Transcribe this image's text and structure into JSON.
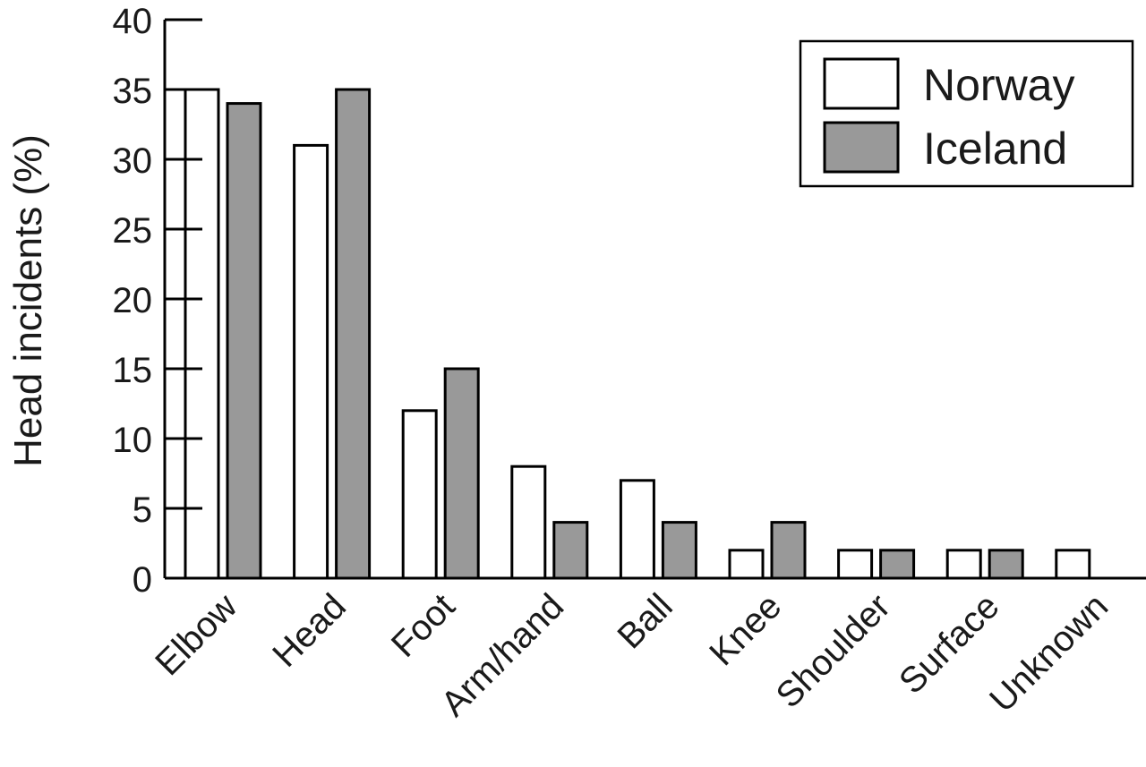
{
  "chart_data": {
    "type": "bar",
    "title": "",
    "xlabel": "",
    "ylabel": "Head incidents (%)",
    "ylim": [
      0,
      40
    ],
    "yticks": [
      0,
      5,
      10,
      15,
      20,
      25,
      30,
      35,
      40
    ],
    "categories": [
      "Elbow",
      "Head",
      "Foot",
      "Arm/hand",
      "Ball",
      "Knee",
      "Shoulder",
      "Surface",
      "Unknown"
    ],
    "series": [
      {
        "name": "Norway",
        "color": "#ffffff",
        "values": [
          35,
          31,
          12,
          8,
          7,
          2,
          2,
          2,
          2
        ]
      },
      {
        "name": "Iceland",
        "color": "#999999",
        "values": [
          34,
          35,
          15,
          4,
          4,
          4,
          2,
          2,
          0
        ]
      }
    ],
    "legend_position": "top-right",
    "grid": false
  }
}
